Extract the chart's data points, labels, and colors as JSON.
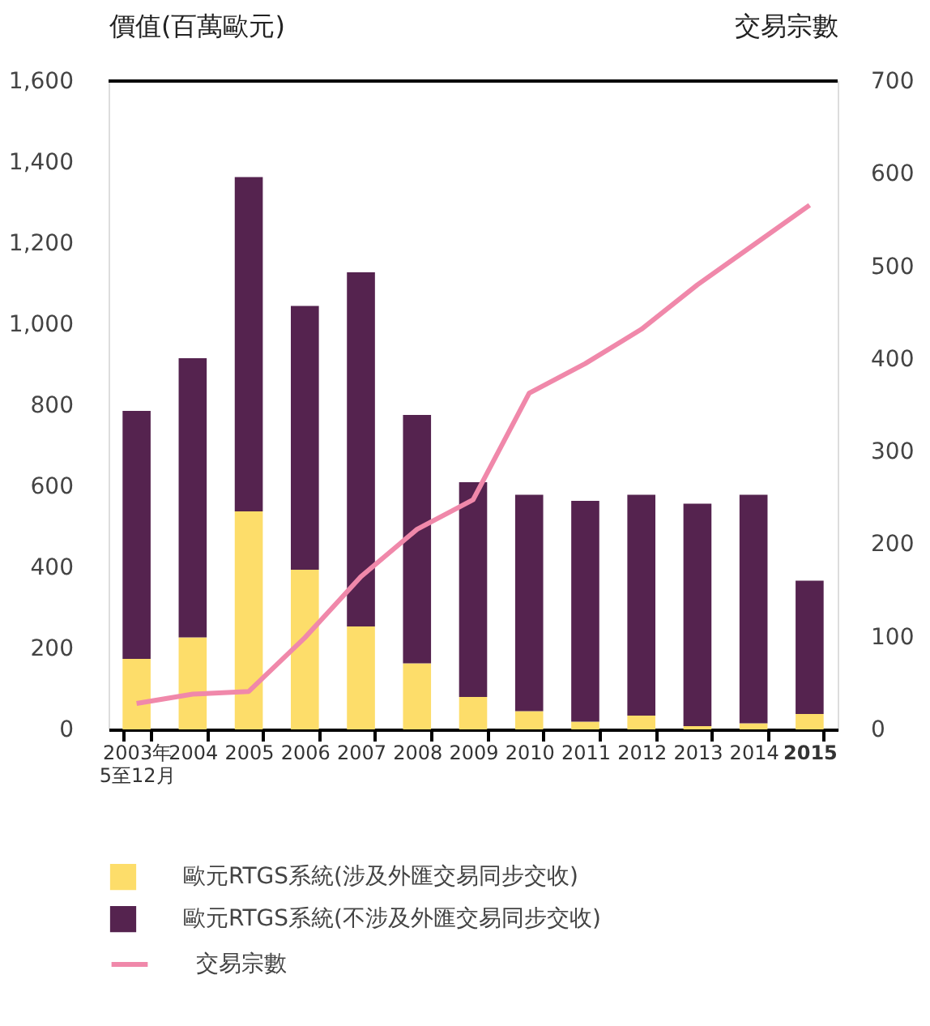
{
  "chart_data": {
    "type": "bar",
    "stacked": true,
    "ylabel": "價值(百萬歐元)",
    "y2label": "交易宗數",
    "categories": [
      "2003年\n5至12月",
      "2004",
      "2005",
      "2006",
      "2007",
      "2008",
      "2009",
      "2010",
      "2011",
      "2012",
      "2013",
      "2014",
      "2015"
    ],
    "series": [
      {
        "name": "歐元RTGS系統(涉及外匯交易同步交收)",
        "color": "#fddd6a",
        "values": [
          174,
          227,
          538,
          394,
          254,
          163,
          80,
          45,
          19,
          34,
          8,
          15,
          38
        ]
      },
      {
        "name": "歐元RTGS系統(不涉及外匯交易同步交收)",
        "color": "#55234f",
        "values": [
          612,
          689,
          825,
          651,
          874,
          613,
          530,
          534,
          545,
          545,
          549,
          564,
          329
        ]
      },
      {
        "name": "交易宗數",
        "type": "line",
        "axis": "y2",
        "color": "#f088aa",
        "values": [
          28,
          38,
          41,
          99,
          165,
          216,
          248,
          363,
          395,
          432,
          480,
          523,
          566
        ]
      }
    ],
    "ylim": [
      0,
      1600
    ],
    "yticks": [
      0,
      200,
      400,
      600,
      800,
      {
        "value": 1000,
        "label": "1,000"
      },
      {
        "value": 1200,
        "label": "1,200"
      },
      {
        "value": 1400,
        "label": "1,400"
      },
      {
        "value": 1600,
        "label": "1,600"
      }
    ],
    "y2lim": [
      0,
      700
    ],
    "y2ticks": [
      0,
      100,
      200,
      300,
      400,
      500,
      600,
      700
    ],
    "grid": false,
    "legend": "bottom"
  }
}
